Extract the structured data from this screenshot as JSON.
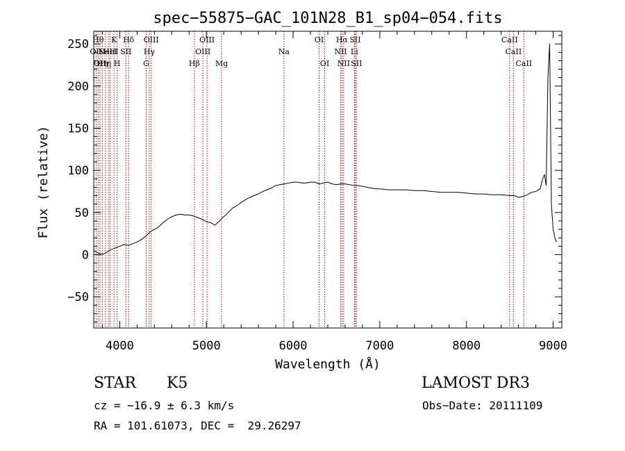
{
  "chart_data": {
    "type": "line",
    "title": "spec−55875−GAC_101N28_B1_sp04−054.fits",
    "xlabel": "Wavelength (Å)",
    "ylabel": "Flux (relative)",
    "xlim": [
      3700,
      9100
    ],
    "ylim": [
      -87,
      265
    ],
    "xticks": [
      4000,
      5000,
      6000,
      7000,
      8000,
      9000
    ],
    "yticks": [
      -50,
      0,
      50,
      100,
      150,
      200,
      250
    ],
    "line_color": "#000000",
    "marker_color": "#b00000",
    "series": [
      {
        "name": "spectrum",
        "x": [
          3700,
          3750,
          3800,
          3850,
          3900,
          3950,
          4000,
          4050,
          4100,
          4150,
          4200,
          4250,
          4300,
          4350,
          4400,
          4450,
          4500,
          4550,
          4600,
          4650,
          4700,
          4750,
          4800,
          4850,
          4900,
          4950,
          5000,
          5050,
          5100,
          5150,
          5200,
          5250,
          5300,
          5350,
          5400,
          5450,
          5500,
          5550,
          5600,
          5650,
          5700,
          5750,
          5800,
          5850,
          5900,
          5950,
          6000,
          6050,
          6100,
          6150,
          6200,
          6250,
          6300,
          6350,
          6400,
          6450,
          6500,
          6550,
          6600,
          6650,
          6700,
          6750,
          6800,
          6850,
          6900,
          6950,
          7000,
          7100,
          7200,
          7300,
          7400,
          7500,
          7600,
          7700,
          7800,
          7900,
          8000,
          8100,
          8200,
          8300,
          8400,
          8500,
          8550,
          8600,
          8650,
          8700,
          8750,
          8800,
          8850,
          8880,
          8900,
          8920,
          8940,
          8960,
          8980,
          9000,
          9020,
          9040
        ],
        "y": [
          5,
          2,
          0,
          3,
          6,
          8,
          10,
          12,
          11,
          13,
          15,
          18,
          22,
          27,
          30,
          33,
          38,
          42,
          45,
          47,
          48,
          47,
          47,
          46,
          44,
          42,
          39,
          38,
          35,
          40,
          45,
          50,
          55,
          58,
          62,
          65,
          68,
          70,
          72,
          75,
          77,
          79,
          82,
          83,
          84,
          85,
          86,
          86,
          85,
          85,
          86,
          86,
          84,
          85,
          86,
          84,
          83,
          84,
          84,
          83,
          82,
          82,
          81,
          80,
          79,
          78,
          78,
          77,
          77,
          77,
          76,
          76,
          75,
          74,
          74,
          74,
          73,
          72,
          72,
          71,
          71,
          70,
          70,
          68,
          69,
          71,
          74,
          75,
          78,
          90,
          95,
          82,
          210,
          250,
          60,
          30,
          20,
          15
        ]
      }
    ],
    "lines": [
      {
        "wavelength": 3727,
        "label": "OII",
        "row": 2
      },
      {
        "wavelength": 3750,
        "label": "Hθ",
        "row": 1
      },
      {
        "wavelength": 3771,
        "label": "OII",
        "row": 3
      },
      {
        "wavelength": 3798,
        "label": "Hη",
        "row": 3
      },
      {
        "wavelength": 3835,
        "label": "Hη",
        "row": 3
      },
      {
        "wavelength": 3869,
        "label": "NeIII",
        "row": 2
      },
      {
        "wavelength": 3889,
        "label": "HeI",
        "row": 2
      },
      {
        "wavelength": 3934,
        "label": "K",
        "row": 1
      },
      {
        "wavelength": 3969,
        "label": "H",
        "row": 3
      },
      {
        "wavelength": 4070,
        "label": "SII",
        "row": 2
      },
      {
        "wavelength": 4102,
        "label": "Hδ",
        "row": 1
      },
      {
        "wavelength": 4305,
        "label": "G",
        "row": 3
      },
      {
        "wavelength": 4341,
        "label": "Hγ",
        "row": 2
      },
      {
        "wavelength": 4363,
        "label": "OIII",
        "row": 1
      },
      {
        "wavelength": 4861,
        "label": "Hβ",
        "row": 3
      },
      {
        "wavelength": 4959,
        "label": "OIII",
        "row": 2
      },
      {
        "wavelength": 5007,
        "label": "OIII",
        "row": 1
      },
      {
        "wavelength": 5175,
        "label": "Mg",
        "row": 3
      },
      {
        "wavelength": 5894,
        "label": "Na",
        "row": 2
      },
      {
        "wavelength": 6300,
        "label": "OI",
        "row": 1
      },
      {
        "wavelength": 6364,
        "label": "OI",
        "row": 3
      },
      {
        "wavelength": 6548,
        "label": "NII",
        "row": 2
      },
      {
        "wavelength": 6563,
        "label": "Hα",
        "row": 1
      },
      {
        "wavelength": 6583,
        "label": "NII",
        "row": 3
      },
      {
        "wavelength": 6707,
        "label": "Li",
        "row": 2
      },
      {
        "wavelength": 6716,
        "label": "SII",
        "row": 1
      },
      {
        "wavelength": 6731,
        "label": "SII",
        "row": 3
      },
      {
        "wavelength": 8498,
        "label": "CaII",
        "row": 1
      },
      {
        "wavelength": 8542,
        "label": "CaII",
        "row": 2
      },
      {
        "wavelength": 8662,
        "label": "CaII",
        "row": 3
      }
    ]
  },
  "info": {
    "object_class": "STAR",
    "subclass": "K5",
    "survey": "LAMOST DR3",
    "redshift_text": "cz = −16.9 ± 6.3 km/s",
    "obs_date": "Obs−Date: 20111109",
    "coords": "RA = 101.61073, DEC =  29.26297"
  }
}
